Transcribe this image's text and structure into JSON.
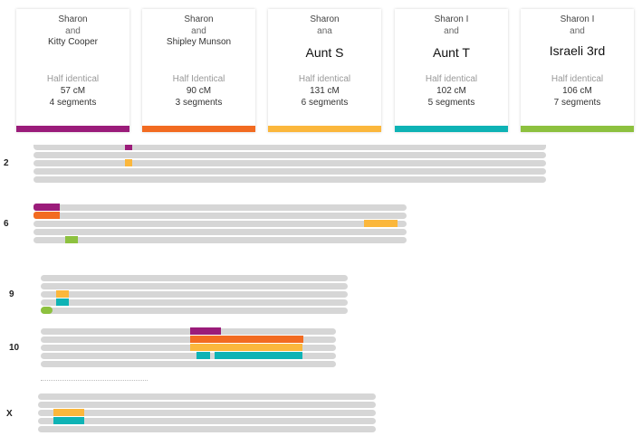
{
  "colors": {
    "purple": "#9b1c7a",
    "orange": "#f26b21",
    "yellow": "#fbb73c",
    "teal": "#0eb3b5",
    "green": "#8dc13f",
    "track": "#d6d6d6"
  },
  "cards": [
    {
      "line1": "Sharon",
      "line2": "and",
      "line3": "Kitty Cooper",
      "relation": "Half identical",
      "cm": "57 cM",
      "segments": "4 segments",
      "color": "#9b1c7a"
    },
    {
      "line1": "Sharon",
      "line2": "and",
      "line3": "Shipley Munson",
      "relation": "Half Identical",
      "cm": "90 cM",
      "segments": "3 segments",
      "color": "#f26b21"
    },
    {
      "line1": "Sharon",
      "line2": "ana",
      "line3": "Aunt S",
      "relation": "Half identical",
      "cm": "131 cM",
      "segments": "6 segments",
      "color": "#fbb73c"
    },
    {
      "line1": "Sharon I",
      "line2": "and",
      "line3": "Aunt T",
      "relation": "Half identical",
      "cm": "102 cM",
      "segments": "5 segments",
      "color": "#0eb3b5"
    },
    {
      "line1": "Sharon I",
      "line2": "and",
      "line3": "Israeli 3rd",
      "relation": "Half identical",
      "cm": "106 cM",
      "segments": "7 segments",
      "color": "#8dc13f"
    }
  ],
  "chromosomes": [
    {
      "label": "2"
    },
    {
      "label": "6"
    },
    {
      "label": "9"
    },
    {
      "label": "10"
    },
    {
      "label": "X"
    }
  ]
}
